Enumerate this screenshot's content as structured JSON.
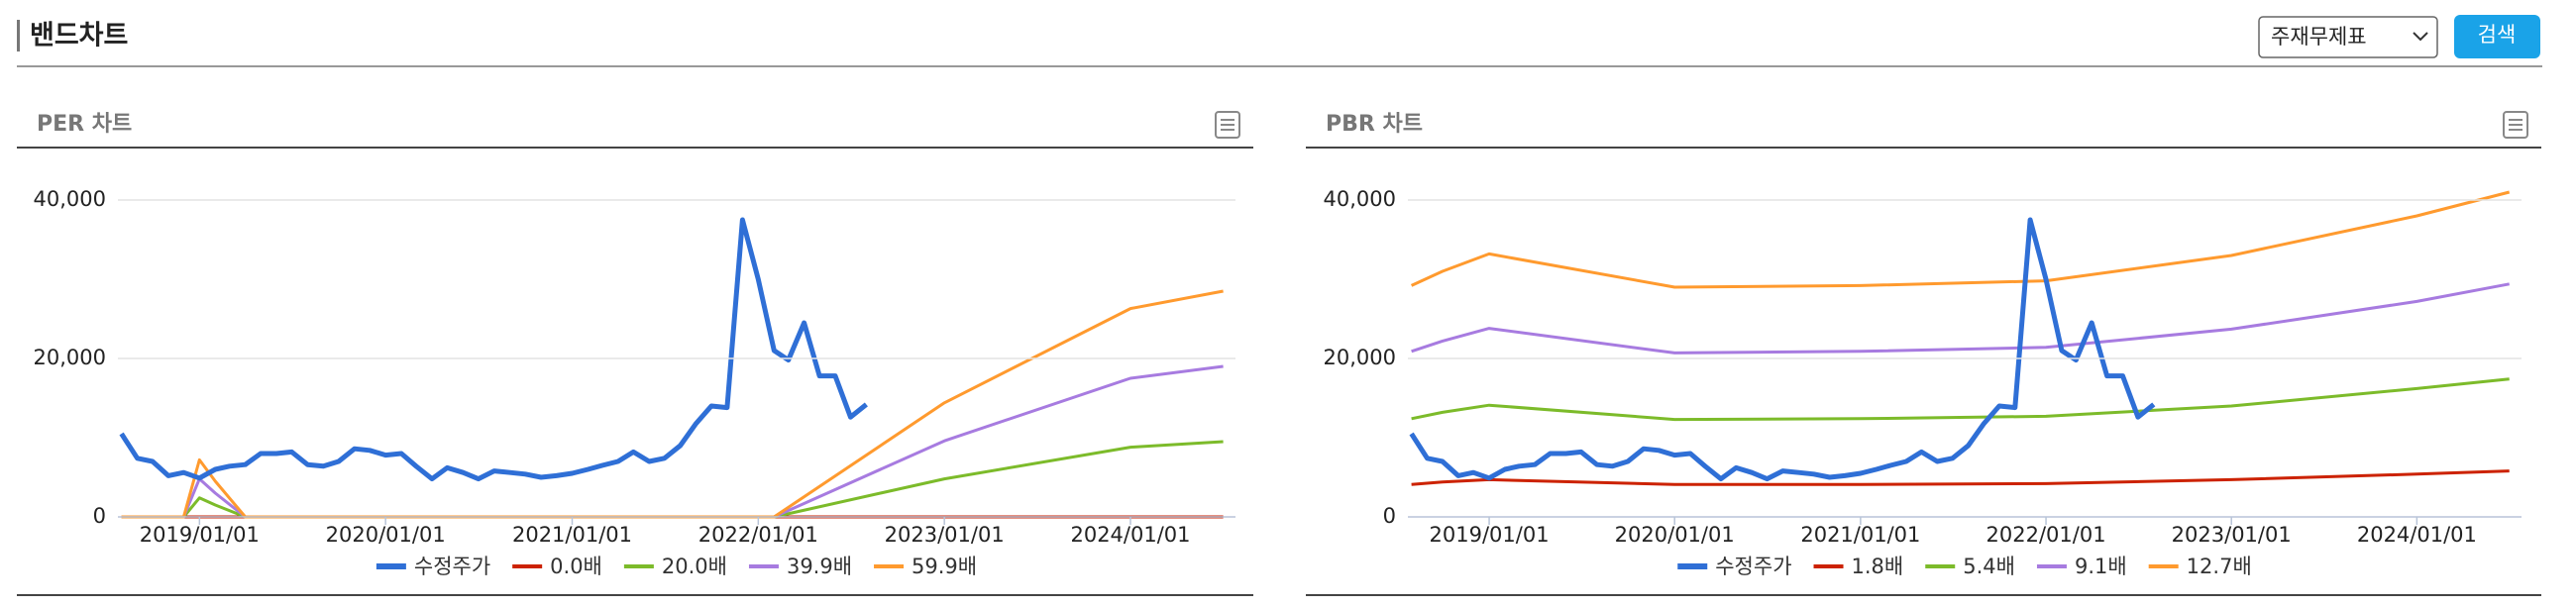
{
  "header": {
    "title": "밴드차트",
    "select": "주재무제표",
    "button": "검색"
  },
  "chart_data": [
    {
      "type": "line",
      "title": "PER 차트",
      "xlim": [
        "2018/07/25",
        "2024/07/25"
      ],
      "xticks": [
        "2019/01/01",
        "2020/01/01",
        "2021/01/01",
        "2022/01/01",
        "2023/01/01",
        "2024/01/01"
      ],
      "ylim": [
        0,
        41000
      ],
      "yticks": [
        0,
        {
          "value": 20000,
          "label": "20,000"
        },
        {
          "value": 40000,
          "label": "40,000"
        }
      ],
      "grid": true,
      "legend": "bottom",
      "series": [
        {
          "name": "수정주가",
          "color": "#2f6fd6",
          "x": [
            "2018/08/01",
            "2018/09/01",
            "2018/10/01",
            "2018/11/01",
            "2018/12/01",
            "2019/01/01",
            "2019/02/01",
            "2019/03/01",
            "2019/04/01",
            "2019/05/01",
            "2019/06/01",
            "2019/07/01",
            "2019/08/01",
            "2019/09/01",
            "2019/10/01",
            "2019/11/01",
            "2019/12/01",
            "2020/01/01",
            "2020/02/01",
            "2020/03/01",
            "2020/04/01",
            "2020/05/01",
            "2020/06/01",
            "2020/07/01",
            "2020/08/01",
            "2020/09/01",
            "2020/10/01",
            "2020/11/01",
            "2020/12/01",
            "2021/01/01",
            "2021/02/01",
            "2021/03/01",
            "2021/04/01",
            "2021/05/01",
            "2021/06/01",
            "2021/07/01",
            "2021/08/01",
            "2021/09/01",
            "2021/10/01",
            "2021/11/01",
            "2021/12/01",
            "2022/01/01",
            "2022/02/01",
            "2022/03/01",
            "2022/04/01",
            "2022/05/01",
            "2022/06/01",
            "2022/07/01",
            "2022/08/01"
          ],
          "values": [
            10500,
            7400,
            7000,
            5200,
            5600,
            4900,
            6000,
            6400,
            6600,
            8000,
            8000,
            8200,
            6600,
            6400,
            7000,
            8600,
            8400,
            7800,
            8000,
            6400,
            4800,
            6200,
            5600,
            4800,
            5800,
            5600,
            5400,
            5000,
            5200,
            5500,
            6000,
            6500,
            7000,
            8200,
            7000,
            7400,
            9000,
            11800,
            14000,
            13800,
            37500,
            30000,
            21000,
            19800,
            24500,
            17800,
            17800,
            12600,
            14200
          ]
        },
        {
          "name": "0.0배",
          "color": "#cc2200",
          "x": [
            "2018/08/01",
            "2018/12/01",
            "2019/01/01",
            "2019/02/01",
            "2019/04/01",
            "2022/02/01",
            "2023/01/01",
            "2024/01/01",
            "2024/07/01"
          ],
          "values": [
            0,
            0,
            0,
            0,
            0,
            0,
            0,
            0,
            0
          ]
        },
        {
          "name": "20.0배",
          "color": "#7cbb2a",
          "x": [
            "2018/08/01",
            "2018/12/01",
            "2019/01/01",
            "2019/02/01",
            "2019/04/01",
            "2022/02/01",
            "2023/01/01",
            "2024/01/01",
            "2024/07/01"
          ],
          "values": [
            0,
            0,
            2400,
            1500,
            0,
            0,
            4800,
            8800,
            9500
          ]
        },
        {
          "name": "39.9배",
          "color": "#a77be0",
          "x": [
            "2018/08/01",
            "2018/12/01",
            "2019/01/01",
            "2019/02/01",
            "2019/04/01",
            "2022/02/01",
            "2023/01/01",
            "2024/01/01",
            "2024/07/01"
          ],
          "values": [
            0,
            0,
            4800,
            3000,
            0,
            0,
            9600,
            17500,
            19000
          ]
        },
        {
          "name": "59.9배",
          "color": "#ff9a2e",
          "x": [
            "2018/08/01",
            "2018/12/01",
            "2019/01/01",
            "2019/02/01",
            "2019/04/01",
            "2022/02/01",
            "2023/01/01",
            "2024/01/01",
            "2024/07/01"
          ],
          "values": [
            0,
            0,
            7200,
            4500,
            0,
            0,
            14400,
            26300,
            28500
          ]
        }
      ]
    },
    {
      "type": "line",
      "title": "PBR 차트",
      "xlim": [
        "2018/07/25",
        "2024/07/25"
      ],
      "xticks": [
        "2019/01/01",
        "2020/01/01",
        "2021/01/01",
        "2022/01/01",
        "2023/01/01",
        "2024/01/01"
      ],
      "ylim": [
        0,
        41000
      ],
      "yticks": [
        0,
        {
          "value": 20000,
          "label": "20,000"
        },
        {
          "value": 40000,
          "label": "40,000"
        }
      ],
      "grid": true,
      "legend": "bottom",
      "series": [
        {
          "name": "수정주가",
          "color": "#2f6fd6",
          "x": [
            "2018/08/01",
            "2018/09/01",
            "2018/10/01",
            "2018/11/01",
            "2018/12/01",
            "2019/01/01",
            "2019/02/01",
            "2019/03/01",
            "2019/04/01",
            "2019/05/01",
            "2019/06/01",
            "2019/07/01",
            "2019/08/01",
            "2019/09/01",
            "2019/10/01",
            "2019/11/01",
            "2019/12/01",
            "2020/01/01",
            "2020/02/01",
            "2020/03/01",
            "2020/04/01",
            "2020/05/01",
            "2020/06/01",
            "2020/07/01",
            "2020/08/01",
            "2020/09/01",
            "2020/10/01",
            "2020/11/01",
            "2020/12/01",
            "2021/01/01",
            "2021/02/01",
            "2021/03/01",
            "2021/04/01",
            "2021/05/01",
            "2021/06/01",
            "2021/07/01",
            "2021/08/01",
            "2021/09/01",
            "2021/10/01",
            "2021/11/01",
            "2021/12/01",
            "2022/01/01",
            "2022/02/01",
            "2022/03/01",
            "2022/04/01",
            "2022/05/01",
            "2022/06/01",
            "2022/07/01",
            "2022/08/01"
          ],
          "values": [
            10500,
            7400,
            7000,
            5200,
            5600,
            4900,
            6000,
            6400,
            6600,
            8000,
            8000,
            8200,
            6600,
            6400,
            7000,
            8600,
            8400,
            7800,
            8000,
            6400,
            4800,
            6200,
            5600,
            4800,
            5800,
            5600,
            5400,
            5000,
            5200,
            5500,
            6000,
            6500,
            7000,
            8200,
            7000,
            7400,
            9000,
            11800,
            14000,
            13800,
            37500,
            30000,
            21000,
            19800,
            24500,
            17800,
            17800,
            12600,
            14200
          ]
        },
        {
          "name": "1.8배",
          "color": "#cc2200",
          "x": [
            "2018/08/01",
            "2018/10/01",
            "2019/01/01",
            "2020/01/01",
            "2021/01/01",
            "2022/01/01",
            "2023/01/01",
            "2024/01/01",
            "2024/07/01"
          ],
          "values": [
            4100,
            4400,
            4700,
            4100,
            4100,
            4200,
            4700,
            5400,
            5800
          ]
        },
        {
          "name": "5.4배",
          "color": "#7cbb2a",
          "x": [
            "2018/08/01",
            "2018/10/01",
            "2019/01/01",
            "2020/01/01",
            "2021/01/01",
            "2022/01/01",
            "2023/01/01",
            "2024/01/01",
            "2024/07/01"
          ],
          "values": [
            12400,
            13200,
            14100,
            12300,
            12400,
            12700,
            14000,
            16200,
            17400
          ]
        },
        {
          "name": "9.1배",
          "color": "#a77be0",
          "x": [
            "2018/08/01",
            "2018/10/01",
            "2019/01/01",
            "2020/01/01",
            "2021/01/01",
            "2022/01/01",
            "2023/01/01",
            "2024/01/01",
            "2024/07/01"
          ],
          "values": [
            20900,
            22200,
            23800,
            20700,
            20900,
            21400,
            23700,
            27200,
            29400
          ]
        },
        {
          "name": "12.7배",
          "color": "#ff9a2e",
          "x": [
            "2018/08/01",
            "2018/10/01",
            "2019/01/01",
            "2020/01/01",
            "2021/01/01",
            "2022/01/01",
            "2023/01/01",
            "2024/01/01",
            "2024/07/01"
          ],
          "values": [
            29200,
            31000,
            33200,
            29000,
            29200,
            29800,
            33000,
            38000,
            41000
          ]
        }
      ]
    }
  ]
}
